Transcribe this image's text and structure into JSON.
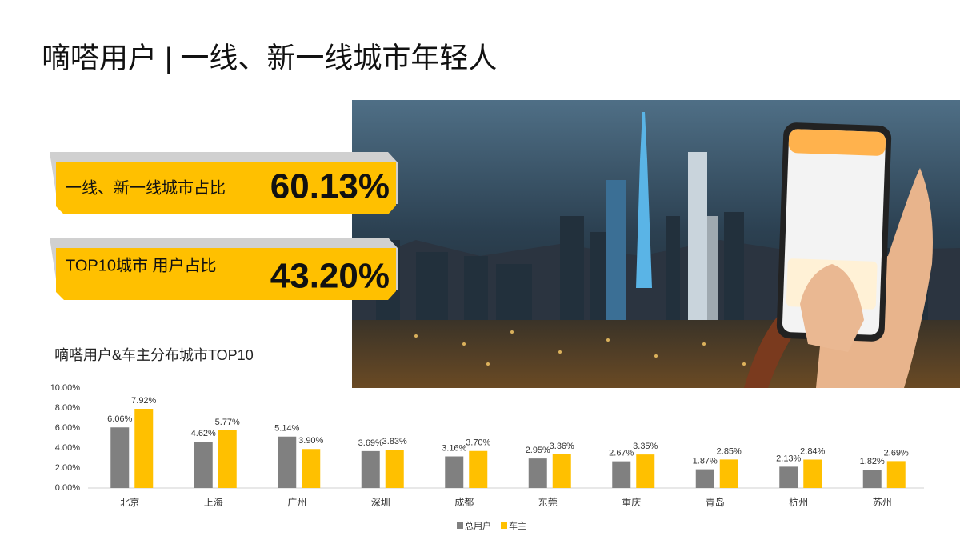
{
  "header": {
    "title": "嘀嗒用户 | 一线、新一线城市年轻人"
  },
  "stats": [
    {
      "label": "一线、新一线城市占比",
      "value": "60.13%"
    },
    {
      "label": "TOP10城市 用户占比",
      "value": "43.20%"
    }
  ],
  "chart_data": {
    "type": "bar",
    "title": "嘀嗒用户&车主分布城市TOP10",
    "categories": [
      "北京",
      "上海",
      "广州",
      "深圳",
      "成都",
      "东莞",
      "重庆",
      "青岛",
      "杭州",
      "苏州"
    ],
    "series": [
      {
        "name": "总用户",
        "color": "#808080",
        "values": [
          6.06,
          4.62,
          5.14,
          3.69,
          3.16,
          2.95,
          2.67,
          1.87,
          2.13,
          1.82
        ],
        "value_labels": [
          "6.06%",
          "4.62%",
          "5.14%",
          "3.69%",
          "3.16%",
          "2.95%",
          "2.67%",
          "1.87%",
          "2.13%",
          "1.82%"
        ]
      },
      {
        "name": "车主",
        "color": "#ffc000",
        "values": [
          7.92,
          5.77,
          3.9,
          3.83,
          3.7,
          3.36,
          3.35,
          2.85,
          2.84,
          2.69
        ],
        "value_labels": [
          "7.92%",
          "5.77%",
          "3.90%",
          "3.83%",
          "3.70%",
          "3.36%",
          "3.35%",
          "2.85%",
          "2.84%",
          "2.69%"
        ]
      }
    ],
    "ylim": [
      0,
      10
    ],
    "yticks": [
      {
        "value": 0,
        "label": "0.00%"
      },
      {
        "value": 2,
        "label": "2.00%"
      },
      {
        "value": 4,
        "label": "4.00%"
      },
      {
        "value": 6,
        "label": "6.00%"
      },
      {
        "value": 8,
        "label": "8.00%"
      },
      {
        "value": 10,
        "label": "10.00%"
      }
    ],
    "legend": "bottom"
  }
}
